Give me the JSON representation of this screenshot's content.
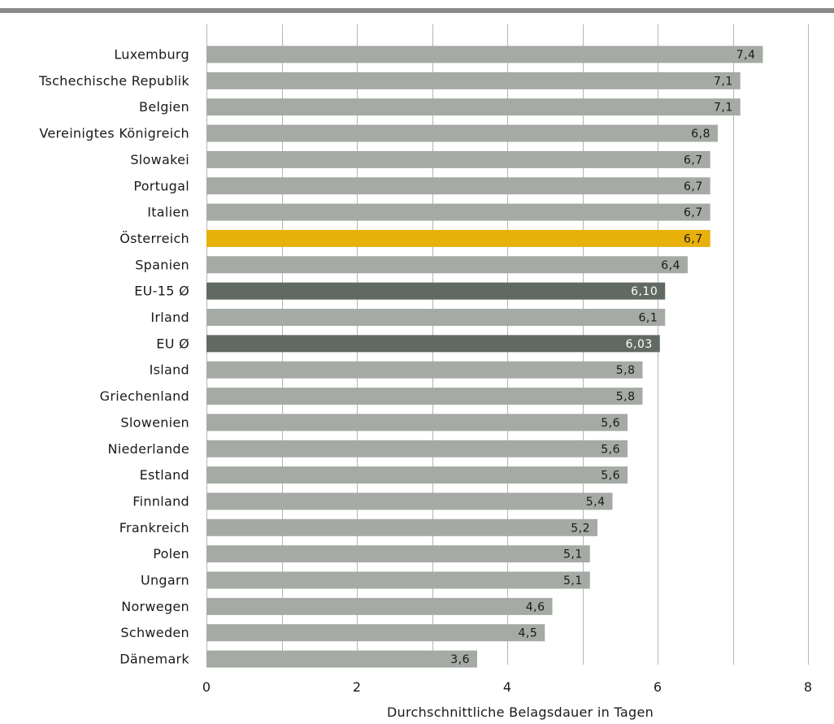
{
  "chart_data": {
    "type": "bar",
    "orientation": "horizontal",
    "title": "",
    "xlabel": "Durchschnittliche Belagsdauer in Tagen",
    "ylabel": "",
    "xlim": [
      0,
      8
    ],
    "xticks": [
      "0",
      "2",
      "4",
      "6",
      "8"
    ],
    "grid": true,
    "categories": [
      "Luxemburg",
      "Tschechische Republik",
      "Belgien",
      "Vereinigtes Königreich",
      "Slowakei",
      "Portugal",
      "Italien",
      "Österreich",
      "Spanien",
      "EU-15 Ø",
      "Irland",
      "EU Ø",
      "Island",
      "Griechenland",
      "Slowenien",
      "Niederlande",
      "Estland",
      "Finnland",
      "Frankreich",
      "Polen",
      "Ungarn",
      "Norwegen",
      "Schweden",
      "Dänemark"
    ],
    "values": [
      7.4,
      7.1,
      7.1,
      6.8,
      6.7,
      6.7,
      6.7,
      6.7,
      6.4,
      6.1,
      6.1,
      6.03,
      5.8,
      5.8,
      5.6,
      5.6,
      5.6,
      5.4,
      5.2,
      5.1,
      5.1,
      4.6,
      4.5,
      3.6
    ],
    "value_labels": [
      "7,4",
      "7,1",
      "7,1",
      "6,8",
      "6,7",
      "6,7",
      "6,7",
      "6,7",
      "6,4",
      "6,10",
      "6,1",
      "6,03",
      "5,8",
      "5,8",
      "5,6",
      "5,6",
      "5,6",
      "5,4",
      "5,2",
      "5,1",
      "5,1",
      "4,6",
      "4,5",
      "3,6"
    ],
    "bar_kinds": [
      "default",
      "default",
      "default",
      "default",
      "default",
      "default",
      "default",
      "highlight",
      "default",
      "average",
      "default",
      "average",
      "default",
      "default",
      "default",
      "default",
      "default",
      "default",
      "default",
      "default",
      "default",
      "default",
      "default",
      "default"
    ],
    "colors": {
      "default": "#a5aaa5",
      "highlight": "#e8b00b",
      "average": "#616a62",
      "grid": "#b5b5b5",
      "top_rule": "#8a8a8a",
      "label_dark": "#1a1a1a",
      "label_light": "#ffffff"
    }
  }
}
